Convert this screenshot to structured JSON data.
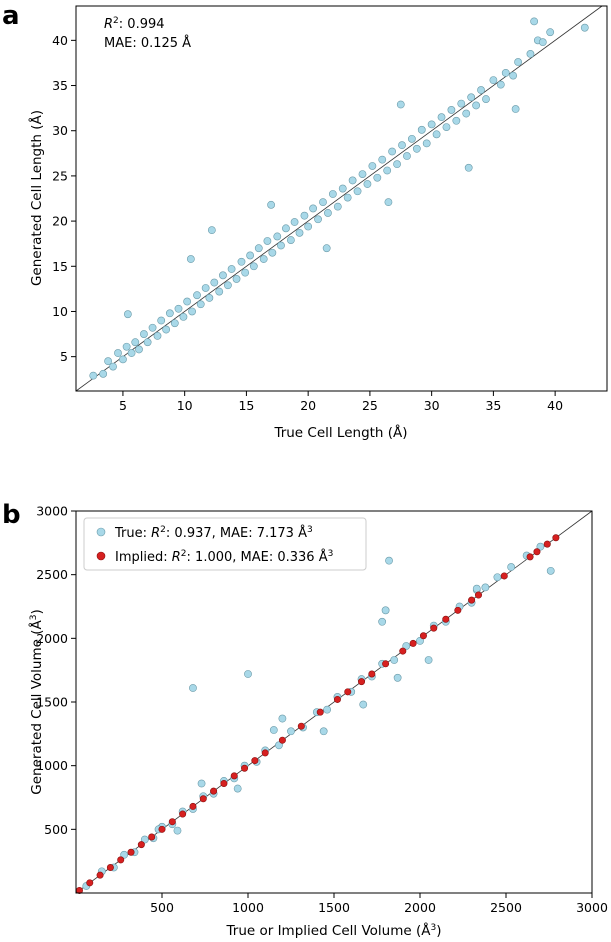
{
  "colors": {
    "true_points": "#a8d8e8",
    "true_edge": "#6a9aa8",
    "implied_points": "#d62020",
    "implied_edge": "#8a1010",
    "diagonal": "#333333"
  },
  "chart_data": [
    {
      "type": "scatter",
      "panel_label": "a",
      "xlabel": "True Cell Length (Å)",
      "ylabel": "Generated Cell Length (Å)",
      "xlim": [
        1.2,
        44.2
      ],
      "ylim": [
        1.2,
        43.8
      ],
      "xticks": [
        5,
        10,
        15,
        20,
        25,
        30,
        35,
        40
      ],
      "yticks": [
        5,
        10,
        15,
        20,
        25,
        30,
        35,
        40
      ],
      "annotations": {
        "r2_label": "R",
        "r2_sup": "2",
        "r2_value": ": 0.994",
        "mae": "MAE: 0.125 Å"
      },
      "diagonal": true,
      "grid": false,
      "series": [
        {
          "points": [
            [
              2.6,
              2.9
            ],
            [
              3.4,
              3.1
            ],
            [
              3.8,
              4.5
            ],
            [
              4.2,
              3.9
            ],
            [
              4.6,
              5.4
            ],
            [
              5.0,
              4.7
            ],
            [
              5.3,
              6.1
            ],
            [
              5.7,
              5.4
            ],
            [
              6.0,
              6.6
            ],
            [
              6.3,
              5.8
            ],
            [
              6.7,
              7.5
            ],
            [
              7.0,
              6.6
            ],
            [
              7.4,
              8.2
            ],
            [
              7.8,
              7.3
            ],
            [
              8.1,
              9.0
            ],
            [
              8.5,
              8.0
            ],
            [
              8.8,
              9.8
            ],
            [
              9.2,
              8.7
            ],
            [
              9.5,
              10.3
            ],
            [
              9.9,
              9.4
            ],
            [
              10.2,
              11.1
            ],
            [
              10.6,
              10.0
            ],
            [
              11.0,
              11.8
            ],
            [
              11.3,
              10.8
            ],
            [
              11.7,
              12.6
            ],
            [
              12.0,
              11.5
            ],
            [
              12.4,
              13.2
            ],
            [
              12.8,
              12.2
            ],
            [
              13.1,
              14.0
            ],
            [
              13.5,
              12.9
            ],
            [
              13.8,
              14.7
            ],
            [
              14.2,
              13.6
            ],
            [
              14.6,
              15.5
            ],
            [
              14.9,
              14.3
            ],
            [
              15.3,
              16.2
            ],
            [
              15.6,
              15.0
            ],
            [
              16.0,
              17.0
            ],
            [
              16.4,
              15.8
            ],
            [
              16.7,
              17.8
            ],
            [
              17.1,
              16.5
            ],
            [
              17.5,
              18.3
            ],
            [
              17.8,
              17.3
            ],
            [
              18.2,
              19.2
            ],
            [
              18.6,
              17.9
            ],
            [
              18.9,
              19.9
            ],
            [
              19.3,
              18.7
            ],
            [
              19.7,
              20.6
            ],
            [
              20.0,
              19.4
            ],
            [
              20.4,
              21.4
            ],
            [
              20.8,
              20.2
            ],
            [
              21.2,
              22.1
            ],
            [
              21.6,
              20.9
            ],
            [
              22.0,
              23.0
            ],
            [
              22.4,
              21.6
            ],
            [
              22.8,
              23.6
            ],
            [
              23.2,
              22.6
            ],
            [
              23.6,
              24.5
            ],
            [
              24.0,
              23.3
            ],
            [
              24.4,
              25.2
            ],
            [
              24.8,
              24.1
            ],
            [
              25.2,
              26.1
            ],
            [
              25.6,
              24.8
            ],
            [
              26.0,
              26.8
            ],
            [
              26.4,
              25.6
            ],
            [
              26.8,
              27.7
            ],
            [
              27.2,
              26.3
            ],
            [
              27.6,
              28.4
            ],
            [
              28.0,
              27.2
            ],
            [
              28.4,
              29.1
            ],
            [
              28.8,
              28.0
            ],
            [
              29.2,
              30.1
            ],
            [
              29.6,
              28.6
            ],
            [
              30.0,
              30.7
            ],
            [
              30.4,
              29.6
            ],
            [
              30.8,
              31.5
            ],
            [
              31.2,
              30.4
            ],
            [
              31.6,
              32.3
            ],
            [
              32.0,
              31.1
            ],
            [
              32.4,
              33.0
            ],
            [
              32.8,
              31.9
            ],
            [
              33.2,
              33.7
            ],
            [
              33.6,
              32.8
            ],
            [
              34.0,
              34.5
            ],
            [
              34.4,
              33.5
            ],
            [
              35.0,
              35.6
            ],
            [
              35.6,
              35.1
            ],
            [
              36.0,
              36.4
            ],
            [
              36.6,
              36.1
            ],
            [
              37.0,
              37.6
            ],
            [
              36.8,
              32.4
            ],
            [
              38.0,
              38.5
            ],
            [
              38.3,
              42.1
            ],
            [
              38.6,
              40.0
            ],
            [
              39.0,
              39.8
            ],
            [
              39.6,
              40.9
            ],
            [
              42.4,
              41.4
            ],
            [
              12.2,
              19.0
            ],
            [
              5.4,
              9.7
            ],
            [
              27.5,
              32.9
            ],
            [
              33.0,
              25.9
            ],
            [
              26.5,
              22.1
            ],
            [
              10.5,
              15.8
            ],
            [
              17.0,
              21.8
            ],
            [
              21.5,
              17.0
            ]
          ]
        }
      ]
    },
    {
      "type": "scatter",
      "panel_label": "b",
      "xlabel": "True or Implied Cell Volume (Å",
      "xlabel_sup": "3",
      "xlabel_end": ")",
      "ylabel": "Generated Cell Volume (Å",
      "ylabel_sup": "3",
      "ylabel_end": ")",
      "xlim": [
        0,
        3000
      ],
      "ylim": [
        0,
        3000
      ],
      "xticks": [
        500,
        1000,
        1500,
        2000,
        2500,
        3000
      ],
      "yticks": [
        500,
        1000,
        1500,
        2000,
        2500,
        3000
      ],
      "legend_position": "top-left",
      "diagonal": true,
      "grid": false,
      "series": [
        {
          "name": "True",
          "legend_prefix": "True: ",
          "legend_r": "R",
          "legend_sup": "2",
          "legend_mid": ": 0.937, MAE: 7.173 Å",
          "legend_sup2": "3",
          "points": [
            [
              60,
              55
            ],
            [
              150,
              170
            ],
            [
              220,
              200
            ],
            [
              280,
              300
            ],
            [
              340,
              320
            ],
            [
              400,
              420
            ],
            [
              450,
              430
            ],
            [
              500,
              520
            ],
            [
              560,
              540
            ],
            [
              620,
              640
            ],
            [
              680,
              660
            ],
            [
              740,
              760
            ],
            [
              800,
              780
            ],
            [
              860,
              880
            ],
            [
              920,
              900
            ],
            [
              980,
              1000
            ],
            [
              1050,
              1030
            ],
            [
              1100,
              1120
            ],
            [
              1180,
              1160
            ],
            [
              1250,
              1270
            ],
            [
              1320,
              1300
            ],
            [
              1400,
              1420
            ],
            [
              1460,
              1440
            ],
            [
              1520,
              1540
            ],
            [
              1600,
              1580
            ],
            [
              1660,
              1680
            ],
            [
              1720,
              1700
            ],
            [
              1780,
              1800
            ],
            [
              1850,
              1830
            ],
            [
              1920,
              1940
            ],
            [
              2000,
              1980
            ],
            [
              2080,
              2100
            ],
            [
              2150,
              2130
            ],
            [
              2230,
              2250
            ],
            [
              2300,
              2280
            ],
            [
              2380,
              2400
            ],
            [
              2450,
              2480
            ],
            [
              2530,
              2560
            ],
            [
              2620,
              2650
            ],
            [
              2700,
              2720
            ],
            [
              2760,
              2530
            ],
            [
              1820,
              2610
            ],
            [
              680,
              1610
            ],
            [
              1000,
              1720
            ],
            [
              1800,
              2220
            ],
            [
              1780,
              2130
            ],
            [
              2330,
              2380
            ],
            [
              1440,
              1270
            ],
            [
              940,
              820
            ],
            [
              1670,
              1480
            ],
            [
              1870,
              1690
            ],
            [
              2050,
              1830
            ],
            [
              1200,
              1370
            ],
            [
              590,
              490
            ],
            [
              480,
              500
            ],
            [
              730,
              860
            ],
            [
              1150,
              1280
            ],
            [
              2330,
              2390
            ]
          ]
        },
        {
          "name": "Implied",
          "legend_prefix": "Implied: ",
          "legend_r": "R",
          "legend_sup": "2",
          "legend_mid": ": 1.000, MAE: 0.336 Å",
          "legend_sup2": "3",
          "points": [
            [
              20,
              20
            ],
            [
              80,
              80
            ],
            [
              140,
              140
            ],
            [
              200,
              200
            ],
            [
              260,
              260
            ],
            [
              320,
              320
            ],
            [
              380,
              380
            ],
            [
              440,
              440
            ],
            [
              500,
              500
            ],
            [
              560,
              560
            ],
            [
              620,
              620
            ],
            [
              680,
              680
            ],
            [
              740,
              740
            ],
            [
              800,
              800
            ],
            [
              860,
              860
            ],
            [
              920,
              920
            ],
            [
              980,
              980
            ],
            [
              1040,
              1040
            ],
            [
              1100,
              1100
            ],
            [
              1200,
              1200
            ],
            [
              1310,
              1310
            ],
            [
              1420,
              1420
            ],
            [
              1520,
              1520
            ],
            [
              1580,
              1580
            ],
            [
              1660,
              1660
            ],
            [
              1720,
              1720
            ],
            [
              1800,
              1800
            ],
            [
              1900,
              1900
            ],
            [
              1960,
              1960
            ],
            [
              2020,
              2020
            ],
            [
              2080,
              2080
            ],
            [
              2150,
              2150
            ],
            [
              2220,
              2220
            ],
            [
              2300,
              2300
            ],
            [
              2340,
              2340
            ],
            [
              2490,
              2490
            ],
            [
              2640,
              2640
            ],
            [
              2680,
              2680
            ],
            [
              2740,
              2740
            ],
            [
              2790,
              2790
            ]
          ]
        }
      ]
    }
  ]
}
